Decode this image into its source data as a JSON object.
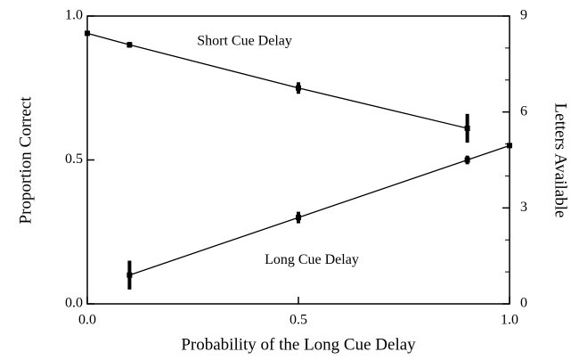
{
  "chart_data": {
    "type": "line",
    "xlabel": "Probability of the Long Cue Delay",
    "ylabel": "Proportion  Correct",
    "y2label": "Letters Available",
    "xlim": [
      0,
      1
    ],
    "xticks": [
      {
        "value": 0,
        "label": "0.0"
      },
      0.5,
      {
        "value": 1,
        "label": "1.0"
      }
    ],
    "ylim": [
      0,
      1
    ],
    "yticks": [
      {
        "value": 0,
        "label": "0.0"
      },
      0.5,
      {
        "value": 1,
        "label": "1.0"
      }
    ],
    "y2lim": [
      0,
      9
    ],
    "y2ticks": [
      0,
      3,
      6,
      9
    ],
    "y2minorticks": [
      1,
      2,
      4,
      5,
      7,
      8
    ],
    "color": "#000000",
    "series": [
      {
        "name": "Short Cue Delay",
        "color": "#000000",
        "x": [
          0,
          0.1,
          0.5,
          0.9
        ],
        "values": [
          0.94,
          0.9,
          0.75,
          0.61
        ],
        "errors": [
          0.005,
          0.01,
          0.02,
          0.05
        ]
      },
      {
        "name": "Long Cue Delay",
        "color": "#000000",
        "x": [
          0.1,
          0.5,
          0.9,
          1.0
        ],
        "values": [
          0.1,
          0.3,
          0.5,
          0.55
        ],
        "errors": [
          0.05,
          0.02,
          0.015,
          0.005
        ]
      }
    ],
    "annotations": [
      {
        "text": "Short Cue Delay",
        "x": 0.26,
        "y": 0.91
      },
      {
        "text": "Long Cue Delay",
        "x": 0.42,
        "y": 0.15
      }
    ]
  }
}
